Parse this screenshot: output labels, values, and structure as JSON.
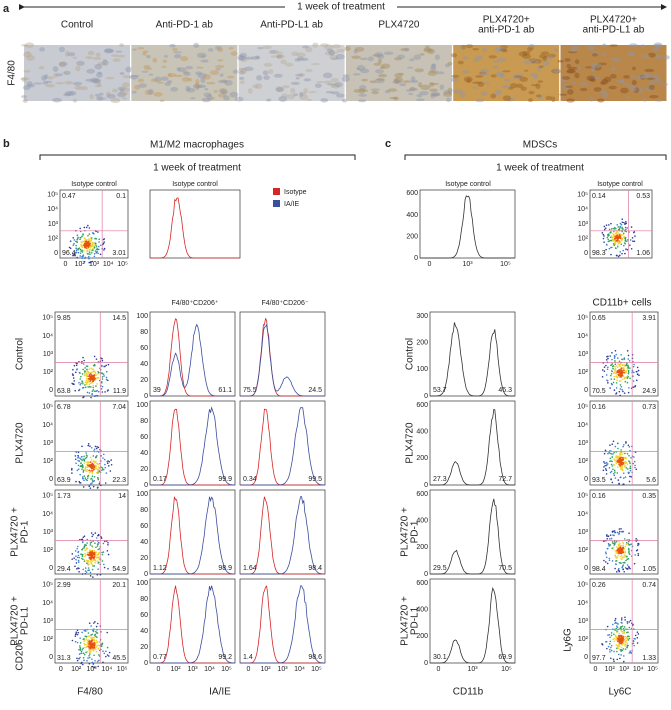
{
  "panel_a": {
    "label": "a",
    "header": "1 week of treatment",
    "row_label": "F4/80",
    "columns": [
      [
        "Control"
      ],
      [
        "Anti-PD-1 ab"
      ],
      [
        "Anti-PD-L1 ab"
      ],
      [
        "PLX4720"
      ],
      [
        "PLX4720+",
        "anti-PD-1 ab"
      ],
      [
        "PLX4720+",
        "anti-PD-L1 ab"
      ]
    ]
  },
  "panel_b": {
    "label": "b",
    "title": "M1/M2 macrophages",
    "subtitle": "1 week of treatment",
    "isotype": {
      "scatter_title": "Isotype control",
      "hist_title": "Isotype control",
      "quadrants": [
        0.47,
        0.1,
        96.4,
        3.01
      ]
    },
    "legend": [
      "Isotype",
      "IA/IE"
    ],
    "log_ticks_y": [
      "10⁵",
      "10⁴",
      "10³",
      "10²",
      "0"
    ],
    "log_ticks_x": [
      "0",
      "10²",
      "10³",
      "10⁴",
      "10⁵"
    ],
    "hist_ticks": [
      "100",
      "80",
      "60",
      "40",
      "20",
      "0"
    ],
    "hist_headers": [
      "F4/80⁺CD206⁺",
      "F4/80⁺CD206⁻"
    ],
    "rows": [
      {
        "label": [
          "Control"
        ],
        "quadrants": [
          9.85,
          14.5,
          63.8,
          11.9
        ],
        "hist": [
          [
            39,
            61.1
          ],
          [
            75.5,
            24.5
          ]
        ]
      },
      {
        "label": [
          "PLX4720"
        ],
        "quadrants": [
          6.78,
          7.04,
          63.9,
          22.3
        ],
        "hist": [
          [
            0.17,
            99.9
          ],
          [
            0.34,
            99.5
          ]
        ]
      },
      {
        "label": [
          "PLX4720 +",
          "PD-1"
        ],
        "quadrants": [
          1.73,
          14,
          29.4,
          54.9
        ],
        "hist": [
          [
            1.12,
            98.9
          ],
          [
            1.64,
            98.4
          ]
        ]
      },
      {
        "label": [
          "PLX4720 +",
          "PD-L1"
        ],
        "quadrants": [
          2.99,
          20.1,
          31.3,
          45.5
        ],
        "hist": [
          [
            0.77,
            99.2
          ],
          [
            1.4,
            98.6
          ]
        ]
      }
    ],
    "x_label_scatter": "F4/80",
    "y_label_scatter": "CD206",
    "x_label_hist": "IA/IE"
  },
  "panel_c": {
    "label": "c",
    "title": "MDSCs",
    "subtitle": "1 week of treatment",
    "isotype": {
      "hist_title": "Isotype control",
      "scatter_title": "Isotype control",
      "hist_ticks": [
        "600",
        "400",
        "200",
        "0"
      ],
      "quadrants": [
        0.14,
        0.53,
        98.3,
        1.06
      ]
    },
    "scatter_header": "CD11b+ cells",
    "log_ticks_y": [
      "10⁵",
      "10⁴",
      "10³",
      "10²",
      "0"
    ],
    "hist_x_ticks": [
      "0",
      "10³",
      "10⁵"
    ],
    "scatter_x_ticks": [
      "0",
      "10²",
      "10³",
      "10⁴",
      "10⁵"
    ],
    "rows": [
      {
        "label": [
          "Control"
        ],
        "hist_ticks": [
          "300",
          "200",
          "100",
          "0"
        ],
        "hist": [
          53.7,
          46.3
        ],
        "quadrants": [
          0.65,
          3.91,
          70.5,
          24.9
        ]
      },
      {
        "label": [
          "PLX4720"
        ],
        "hist_ticks": [
          "600",
          "400",
          "200",
          "0"
        ],
        "hist": [
          27.3,
          72.7
        ],
        "quadrants": [
          0.16,
          0.73,
          93.5,
          5.6
        ]
      },
      {
        "label": [
          "PLX4720 +",
          "PD-1"
        ],
        "hist_ticks": [
          "600",
          "400",
          "200",
          "0"
        ],
        "hist": [
          29.5,
          70.5
        ],
        "quadrants": [
          0.16,
          0.35,
          98.4,
          1.05
        ]
      },
      {
        "label": [
          "PLX4720 +",
          "PD-L1"
        ],
        "hist_ticks": [
          "600",
          "400",
          "200",
          "0"
        ],
        "hist": [
          30.1,
          69.9
        ],
        "quadrants": [
          0.26,
          0.74,
          97.7,
          1.33
        ]
      }
    ],
    "x_label_hist": "CD11b",
    "x_label_scatter": "Ly6C",
    "y_label_scatter": "Ly6G"
  }
}
